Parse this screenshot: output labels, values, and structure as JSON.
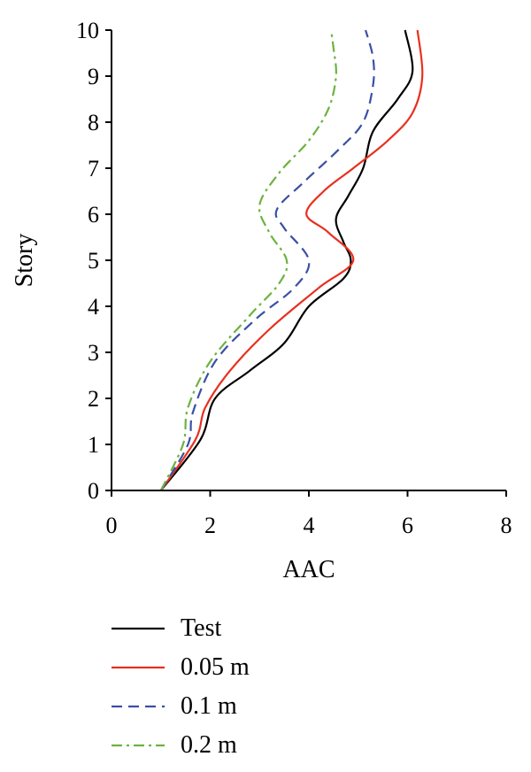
{
  "chart_data": {
    "type": "line",
    "xlabel": "AAC",
    "ylabel": "Story",
    "xlim": [
      0,
      8
    ],
    "ylim": [
      0,
      10
    ],
    "xticks": [
      0,
      2,
      4,
      6,
      8
    ],
    "yticks": [
      0,
      1,
      2,
      3,
      4,
      5,
      6,
      7,
      8,
      9,
      10
    ],
    "grid": false,
    "legend_position": "bottom",
    "series": [
      {
        "name": "Test",
        "color": "#000000",
        "dash": "solid",
        "points": [
          [
            1.0,
            0.0
          ],
          [
            1.8,
            1.1
          ],
          [
            2.1,
            2.0
          ],
          [
            2.8,
            2.6
          ],
          [
            3.5,
            3.2
          ],
          [
            4.0,
            4.0
          ],
          [
            4.7,
            4.6
          ],
          [
            4.85,
            5.0
          ],
          [
            4.7,
            5.4
          ],
          [
            4.55,
            5.9
          ],
          [
            4.8,
            6.4
          ],
          [
            5.1,
            7.0
          ],
          [
            5.3,
            7.8
          ],
          [
            5.8,
            8.5
          ],
          [
            6.1,
            9.1
          ],
          [
            5.95,
            10.0
          ]
        ]
      },
      {
        "name": "0.05 m",
        "color": "#e8301f",
        "dash": "solid",
        "points": [
          [
            1.0,
            0.0
          ],
          [
            1.7,
            1.1
          ],
          [
            1.9,
            1.8
          ],
          [
            2.4,
            2.6
          ],
          [
            3.2,
            3.5
          ],
          [
            4.2,
            4.4
          ],
          [
            4.9,
            5.0
          ],
          [
            4.4,
            5.6
          ],
          [
            3.95,
            6.0
          ],
          [
            4.3,
            6.5
          ],
          [
            4.9,
            7.0
          ],
          [
            5.6,
            7.6
          ],
          [
            6.1,
            8.2
          ],
          [
            6.3,
            9.0
          ],
          [
            6.2,
            10.0
          ]
        ]
      },
      {
        "name": "0.1 m",
        "color": "#3a4fa6",
        "dash": "dash",
        "points": [
          [
            1.0,
            0.0
          ],
          [
            1.55,
            1.0
          ],
          [
            1.65,
            1.7
          ],
          [
            2.1,
            2.8
          ],
          [
            2.9,
            3.7
          ],
          [
            3.7,
            4.4
          ],
          [
            4.0,
            5.0
          ],
          [
            3.5,
            5.7
          ],
          [
            3.35,
            6.1
          ],
          [
            3.9,
            6.7
          ],
          [
            4.6,
            7.4
          ],
          [
            5.1,
            8.0
          ],
          [
            5.3,
            8.8
          ],
          [
            5.3,
            9.4
          ],
          [
            5.15,
            10.0
          ]
        ]
      },
      {
        "name": "0.2 m",
        "color": "#6cb33f",
        "dash": "dashdot",
        "points": [
          [
            1.0,
            0.0
          ],
          [
            1.45,
            1.0
          ],
          [
            1.55,
            1.8
          ],
          [
            2.0,
            2.8
          ],
          [
            2.8,
            3.8
          ],
          [
            3.4,
            4.5
          ],
          [
            3.55,
            5.0
          ],
          [
            3.2,
            5.6
          ],
          [
            3.0,
            6.2
          ],
          [
            3.4,
            6.9
          ],
          [
            4.0,
            7.6
          ],
          [
            4.4,
            8.3
          ],
          [
            4.55,
            9.0
          ],
          [
            4.5,
            9.6
          ],
          [
            4.45,
            10.0
          ]
        ]
      }
    ]
  }
}
